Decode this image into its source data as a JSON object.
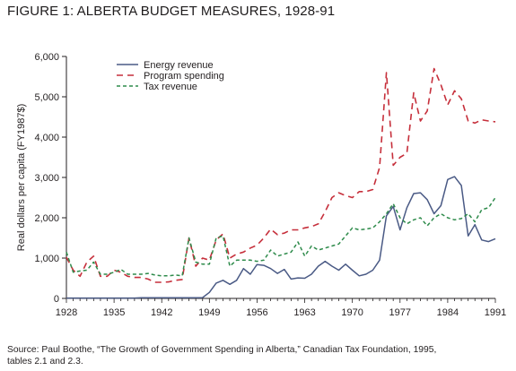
{
  "figure": {
    "title": "FIGURE 1: ALBERTA BUDGET MEASURES, 1928-91",
    "source_line1": "Source: Paul Boothe, “The Growth of Government Spending in Alberta,” Canadian Tax Foundation, 1995,",
    "source_line2": "tables 2.1 and 2.3."
  },
  "chart_data": {
    "type": "line",
    "title": "FIGURE 1: ALBERTA BUDGET MEASURES, 1928-91",
    "xlabel": "",
    "ylabel": "Real dollars per capita (FY1987$)",
    "xlim": [
      1928,
      1991
    ],
    "ylim": [
      0,
      6000
    ],
    "xticks": [
      1928,
      1935,
      1942,
      1949,
      1956,
      1963,
      1970,
      1977,
      1984,
      1991
    ],
    "xtick_labels": [
      "1928",
      "1935",
      "1942",
      "1949",
      "1956",
      "1963",
      "1970",
      "1977",
      "1984",
      "1991"
    ],
    "yticks": [
      0,
      1000,
      2000,
      3000,
      4000,
      5000,
      6000
    ],
    "ytick_labels": [
      "0",
      "1,000",
      "2,000",
      "3,000",
      "4,000",
      "5,000",
      "6,000"
    ],
    "grid": false,
    "legend_position": "top-left",
    "x": [
      1928,
      1929,
      1930,
      1931,
      1932,
      1933,
      1934,
      1935,
      1936,
      1937,
      1938,
      1939,
      1940,
      1941,
      1942,
      1943,
      1944,
      1945,
      1946,
      1947,
      1948,
      1949,
      1950,
      1951,
      1952,
      1953,
      1954,
      1955,
      1956,
      1957,
      1958,
      1959,
      1960,
      1961,
      1962,
      1963,
      1964,
      1965,
      1966,
      1967,
      1968,
      1969,
      1970,
      1971,
      1972,
      1973,
      1974,
      1975,
      1976,
      1977,
      1978,
      1979,
      1980,
      1981,
      1982,
      1983,
      1984,
      1985,
      1986,
      1987,
      1988,
      1989,
      1990,
      1991
    ],
    "series": [
      {
        "name": "Energy revenue",
        "style": "solid",
        "color": "#4a5a85",
        "values": [
          10,
          10,
          10,
          10,
          10,
          10,
          10,
          10,
          10,
          10,
          10,
          15,
          15,
          15,
          15,
          15,
          15,
          15,
          15,
          15,
          20,
          150,
          380,
          450,
          350,
          450,
          740,
          600,
          840,
          820,
          740,
          620,
          720,
          480,
          510,
          500,
          600,
          800,
          920,
          800,
          700,
          850,
          700,
          560,
          600,
          700,
          950,
          2050,
          2280,
          1700,
          2250,
          2600,
          2620,
          2450,
          2100,
          2300,
          2950,
          3020,
          2800,
          1550,
          1830,
          1450,
          1410,
          1480
        ]
      },
      {
        "name": "Program spending",
        "style": "dashed",
        "color": "#c62f3b",
        "values": [
          1020,
          700,
          550,
          900,
          1050,
          550,
          550,
          700,
          650,
          550,
          520,
          520,
          480,
          400,
          400,
          410,
          450,
          470,
          1500,
          800,
          1000,
          950,
          1450,
          1600,
          1000,
          1100,
          1150,
          1250,
          1320,
          1500,
          1720,
          1580,
          1620,
          1700,
          1700,
          1750,
          1780,
          1850,
          2150,
          2500,
          2620,
          2550,
          2500,
          2650,
          2650,
          2700,
          3250,
          5600,
          3300,
          3500,
          3600,
          5100,
          4400,
          4650,
          5700,
          5300,
          4800,
          5150,
          4950,
          4400,
          4350,
          4430,
          4400,
          4380
        ]
      },
      {
        "name": "Tax revenue",
        "style": "dashed",
        "color": "#2e8b4b",
        "values": [
          1150,
          650,
          680,
          700,
          900,
          600,
          600,
          650,
          720,
          600,
          600,
          600,
          620,
          580,
          560,
          560,
          580,
          560,
          1500,
          900,
          850,
          850,
          1500,
          1550,
          800,
          950,
          950,
          950,
          920,
          950,
          1200,
          1050,
          1100,
          1150,
          1400,
          1050,
          1300,
          1200,
          1250,
          1300,
          1350,
          1550,
          1750,
          1700,
          1720,
          1750,
          1900,
          2100,
          2350,
          2000,
          1850,
          1950,
          2000,
          1800,
          2000,
          2100,
          2000,
          1950,
          1980,
          2100,
          1900,
          2200,
          2250,
          2500
        ]
      }
    ]
  }
}
